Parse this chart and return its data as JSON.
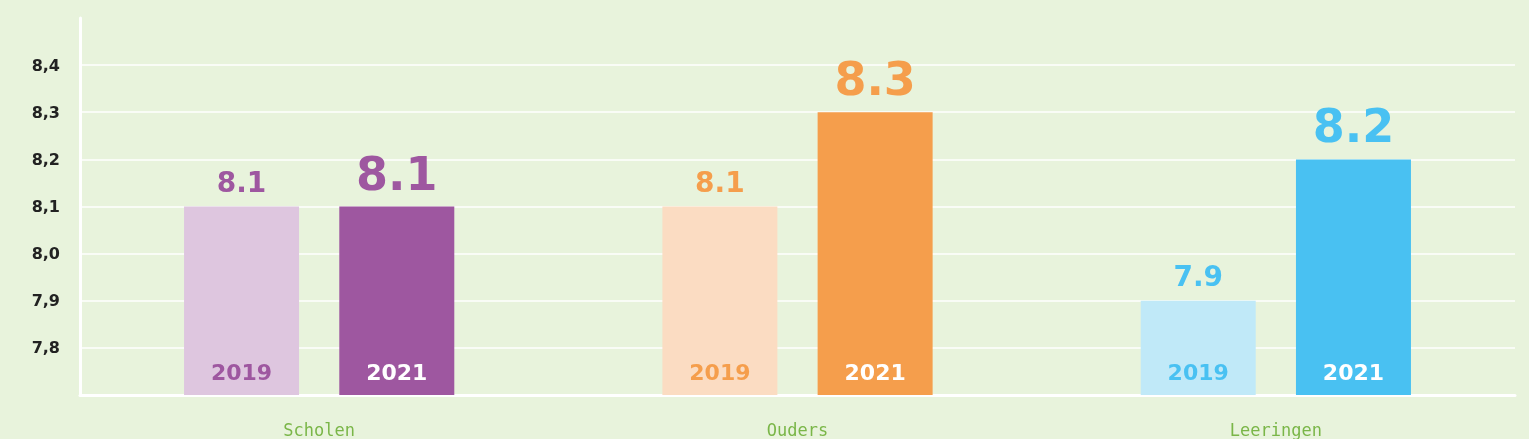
{
  "chart_data": {
    "type": "bar",
    "categories": [
      "Scholen",
      "Ouders",
      "Leeringen"
    ],
    "series": [
      {
        "name": "2019",
        "colors": [
          "#dec6df",
          "#fbdcc2",
          "#c0e9f8"
        ],
        "values": [
          8.1,
          8.1,
          7.9
        ]
      },
      {
        "name": "2021",
        "colors": [
          "#9e57a0",
          "#f59e4c",
          "#49c1f2"
        ],
        "values": [
          8.1,
          8.3,
          8.2
        ]
      }
    ],
    "ylim": [
      7.7,
      8.5
    ],
    "yticks": [
      {
        "value": 7.8,
        "label": "7,8"
      },
      {
        "value": 7.9,
        "label": "7,9"
      },
      {
        "value": 8.0,
        "label": "8,0"
      },
      {
        "value": 8.1,
        "label": "8,1"
      },
      {
        "value": 8.2,
        "label": "8,2"
      },
      {
        "value": 8.3,
        "label": "8,3"
      },
      {
        "value": 8.4,
        "label": "8,4"
      }
    ],
    "grid": "y",
    "data_labels": true,
    "legend": false
  }
}
